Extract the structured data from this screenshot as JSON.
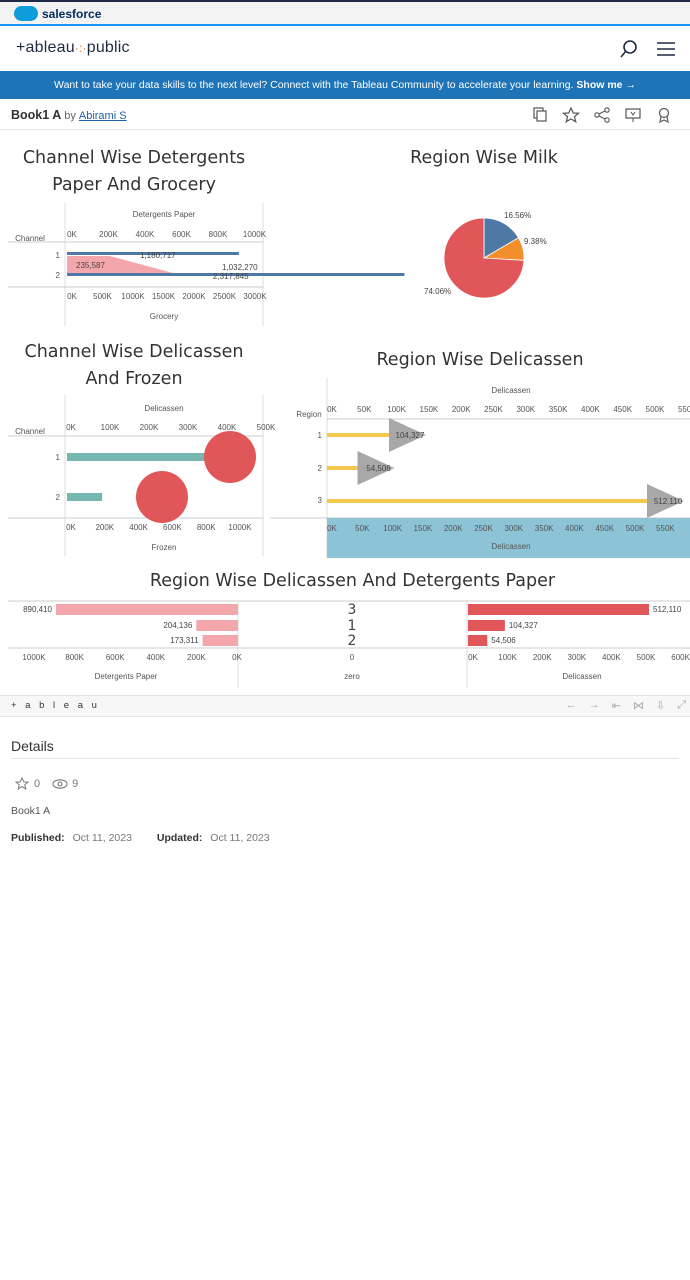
{
  "salesforce": {
    "brand": "salesforce"
  },
  "header": {
    "logo_main": "+ableau",
    "logo_sep": "·:·",
    "logo_public": "public"
  },
  "banner": {
    "text": "Want to take your data skills to the next level? Connect with the Tableau Community to accelerate your learning.",
    "link": "Show me →"
  },
  "workbook": {
    "title": "Book1 A",
    "by": "by",
    "author": "Abirami S"
  },
  "sheets": {
    "s1": {
      "title": "Channel Wise Detergents Paper And Grocery",
      "top_axis": "Detergents Paper",
      "bottom_axis": "Grocery",
      "row_header": "Channel"
    },
    "s2": {
      "title": "Region Wise Milk"
    },
    "s3": {
      "title": "Channel Wise Delicassen And Frozen",
      "top_axis": "Delicassen",
      "bottom_axis": "Frozen",
      "row_header": "Channel"
    },
    "s4": {
      "title": "Region Wise Delicassen",
      "top_axis": "Delicassen",
      "bottom_axis": "Delicassen",
      "row_header": "Region"
    },
    "s5": {
      "title": "Region Wise Delicassen And Detergents Paper",
      "left_axis": "Detergents Paper",
      "mid_axis": "zero",
      "right_axis": "Delicassen"
    }
  },
  "chart_data": [
    {
      "type": "bar",
      "title": "Channel Wise Detergents Paper And Grocery",
      "categories": [
        "1",
        "2"
      ],
      "series": [
        {
          "name": "Detergents Paper",
          "values": [
            235587,
            2317845
          ]
        },
        {
          "name": "Grocery",
          "values": [
            1180717,
            1032270
          ]
        }
      ],
      "top_ticks": [
        "0K",
        "200K",
        "400K",
        "600K",
        "800K",
        "1000K"
      ],
      "bottom_ticks": [
        "0K",
        "500K",
        "1000K",
        "1500K",
        "2000K",
        "2500K",
        "3000K"
      ],
      "labels": [
        "1,180,717",
        "235,587",
        "1,032,270",
        "2,317,845"
      ],
      "xlabel": "Grocery"
    },
    {
      "type": "pie",
      "title": "Region Wise Milk",
      "slices": [
        {
          "value": 16.56,
          "label": "16.56%",
          "color": "#4e79a7"
        },
        {
          "value": 9.38,
          "label": "9.38%",
          "color": "#f28e2b"
        },
        {
          "value": 74.06,
          "label": "74.06%",
          "color": "#e15759"
        }
      ]
    },
    {
      "type": "scatter",
      "title": "Channel Wise Delicassen And Frozen",
      "categories": [
        "1",
        "2"
      ],
      "delicassen": [
        420000,
        250000
      ],
      "frozen": [
        415000,
        100000
      ],
      "top_ticks": [
        "0K",
        "100K",
        "200K",
        "300K",
        "400K",
        "500K"
      ],
      "bottom_ticks": [
        "0K",
        "200K",
        "400K",
        "600K",
        "800K",
        "1000K"
      ],
      "xlabel": "Frozen"
    },
    {
      "type": "bar",
      "title": "Region Wise Delicassen",
      "categories": [
        "1",
        "2",
        "3"
      ],
      "values": [
        104327,
        54506,
        512110
      ],
      "labels": [
        "104,327",
        "54,506",
        "512,110"
      ],
      "ticks": [
        "0K",
        "50K",
        "100K",
        "150K",
        "200K",
        "250K",
        "300K",
        "350K",
        "400K",
        "450K",
        "500K",
        "550K"
      ],
      "xlabel": "Delicassen"
    },
    {
      "type": "bar",
      "title": "Region Wise Delicassen And Detergents Paper",
      "categories": [
        "3",
        "1",
        "2"
      ],
      "series": [
        {
          "name": "Detergents Paper",
          "values": [
            890410,
            204136,
            173311
          ],
          "labels": [
            "890,410",
            "204,136",
            "173,311"
          ]
        },
        {
          "name": "Delicassen",
          "values": [
            512110,
            104327,
            54506
          ],
          "labels": [
            "512,110",
            "104,327",
            "54,506"
          ]
        }
      ],
      "left_ticks": [
        "1000K",
        "800K",
        "600K",
        "400K",
        "200K",
        "0K"
      ],
      "mid_ticks": [
        "0"
      ],
      "right_ticks": [
        "0K",
        "100K",
        "200K",
        "300K",
        "400K",
        "500K",
        "600K"
      ]
    }
  ],
  "footer": {
    "brand": "+ a b l e a u"
  },
  "details": {
    "title": "Details",
    "favorites": "0",
    "views": "9",
    "book": "Book1 A",
    "published_label": "Published:",
    "published": "Oct 11, 2023",
    "updated_label": "Updated:",
    "updated": "Oct 11, 2023"
  },
  "colors": {
    "banner": "#1f73b7",
    "pink": "#f4a6ad",
    "red": "#e15759",
    "teal": "#76b7b2",
    "yellow": "#f2c94c",
    "grey": "#a8a8a8",
    "lightblue": "#8dc3d6"
  }
}
